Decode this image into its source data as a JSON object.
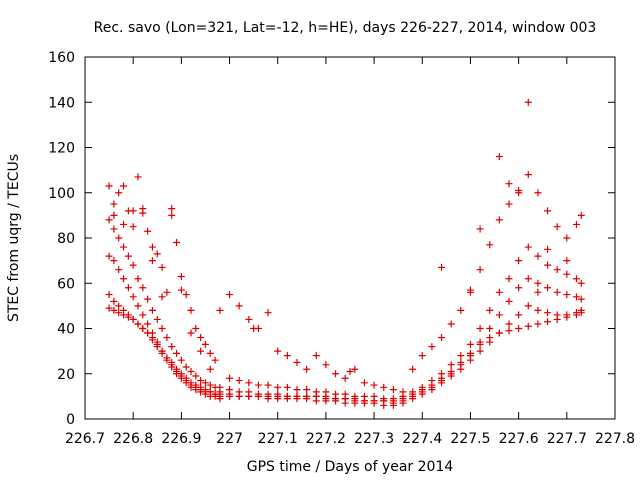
{
  "chart_data": {
    "type": "scatter",
    "title": "Rec. savo (Lon=321, Lat=-12, h=HE), days 226-227, 2014, window 003",
    "xlabel": "GPS time / Days of year 2014",
    "ylabel": "STEC from uqrg / TECUs",
    "xlim": [
      226.7,
      227.8
    ],
    "ylim": [
      0,
      160
    ],
    "xticks": [
      226.7,
      226.8,
      226.9,
      227.0,
      227.1,
      227.2,
      227.3,
      227.4,
      227.5,
      227.6,
      227.7,
      227.8
    ],
    "xtick_labels": [
      "226.7",
      "226.8",
      "226.9",
      "227",
      "227.1",
      "227.2",
      "227.3",
      "227.4",
      "227.5",
      "227.6",
      "227.7",
      "227.8"
    ],
    "yticks": [
      0,
      20,
      40,
      60,
      80,
      100,
      120,
      140,
      160
    ],
    "ytick_labels": [
      "0",
      "20",
      "40",
      "60",
      "80",
      "100",
      "120",
      "140",
      "160"
    ],
    "grid": false,
    "marker": "+",
    "marker_color": "#dd0000",
    "series": [
      {
        "x": [
          226.75,
          226.76,
          226.77,
          226.78,
          226.79,
          226.8,
          226.81,
          226.82,
          226.83,
          226.84,
          226.85,
          226.86,
          226.87,
          226.88,
          226.89,
          226.9,
          226.91,
          226.92,
          226.93,
          226.94,
          226.95,
          226.96,
          226.97,
          226.98,
          227.0,
          227.02,
          227.04,
          227.06,
          227.08,
          227.1,
          227.12,
          227.14,
          227.16,
          227.18,
          227.2,
          227.22,
          227.24,
          227.26,
          227.28,
          227.3,
          227.32,
          227.34,
          227.36,
          227.38,
          227.4,
          227.42,
          227.44,
          227.46,
          227.48,
          227.5,
          227.52,
          227.54,
          227.56,
          227.58,
          227.6,
          227.62,
          227.64,
          227.66,
          227.68,
          227.7,
          227.72,
          227.73
        ],
        "y": [
          103,
          95,
          100,
          103,
          92,
          85,
          107,
          93,
          83,
          76,
          73,
          67,
          56,
          93,
          78,
          63,
          55,
          48,
          40,
          36,
          33,
          29,
          26,
          48,
          55,
          50,
          44,
          40,
          47,
          30,
          28,
          25,
          22,
          28,
          24,
          20,
          18,
          22,
          16,
          15,
          14,
          13,
          12,
          22,
          28,
          32,
          36,
          42,
          48,
          56,
          66,
          77,
          88,
          95,
          100,
          108,
          100,
          92,
          85,
          80,
          86,
          90
        ]
      },
      {
        "x": [
          226.75,
          226.76,
          226.77,
          226.78,
          226.79,
          226.8,
          226.81,
          226.82,
          226.83,
          226.84,
          226.85,
          226.86,
          226.87,
          226.88,
          226.89,
          226.9,
          226.91,
          226.92,
          226.93,
          226.94,
          226.95,
          226.96,
          226.97,
          226.98,
          227.0,
          227.02,
          227.04,
          227.06,
          227.08,
          227.1,
          227.12,
          227.14,
          227.16,
          227.18,
          227.2,
          227.22,
          227.24,
          227.26,
          227.28,
          227.3,
          227.32,
          227.34,
          227.36,
          227.38,
          227.4,
          227.42,
          227.44,
          227.46,
          227.48,
          227.5,
          227.52,
          227.54,
          227.56,
          227.58,
          227.6,
          227.62,
          227.64,
          227.66,
          227.68,
          227.7,
          227.72,
          227.73
        ],
        "y": [
          88,
          84,
          80,
          76,
          72,
          68,
          62,
          58,
          53,
          48,
          44,
          40,
          36,
          32,
          29,
          26,
          23,
          21,
          19,
          17,
          16,
          15,
          14,
          14,
          18,
          17,
          16,
          15,
          15,
          14,
          14,
          13,
          13,
          12,
          12,
          11,
          11,
          10,
          10,
          10,
          9,
          9,
          10,
          12,
          14,
          17,
          20,
          24,
          28,
          33,
          40,
          48,
          56,
          62,
          70,
          76,
          72,
          68,
          66,
          64,
          62,
          60
        ]
      },
      {
        "x": [
          226.75,
          226.76,
          226.77,
          226.78,
          226.79,
          226.8,
          226.81,
          226.82,
          226.83,
          226.84,
          226.85,
          226.86,
          226.87,
          226.88,
          226.89,
          226.9,
          226.91,
          226.92,
          226.93,
          226.94,
          226.95,
          226.96,
          226.97,
          226.98,
          227.0,
          227.02,
          227.04,
          227.06,
          227.08,
          227.1,
          227.12,
          227.14,
          227.16,
          227.18,
          227.2,
          227.22,
          227.24,
          227.26,
          227.28,
          227.3,
          227.32,
          227.34,
          227.36,
          227.38,
          227.4,
          227.42,
          227.44,
          227.46,
          227.48,
          227.5,
          227.52,
          227.54,
          227.56,
          227.58,
          227.6,
          227.62,
          227.64,
          227.66,
          227.68,
          227.7,
          227.72,
          227.73
        ],
        "y": [
          72,
          70,
          66,
          62,
          58,
          54,
          50,
          46,
          42,
          38,
          34,
          30,
          27,
          24,
          21,
          19,
          17,
          15,
          14,
          13,
          12,
          12,
          11,
          11,
          13,
          12,
          12,
          11,
          11,
          11,
          10,
          10,
          10,
          10,
          9,
          9,
          9,
          8,
          8,
          8,
          8,
          7,
          8,
          10,
          12,
          14,
          17,
          20,
          24,
          28,
          34,
          40,
          46,
          52,
          58,
          62,
          60,
          58,
          56,
          55,
          54,
          53
        ]
      },
      {
        "x": [
          226.75,
          226.76,
          226.77,
          226.78,
          226.79,
          226.8,
          226.81,
          226.82,
          226.83,
          226.84,
          226.85,
          226.86,
          226.87,
          226.88,
          226.89,
          226.9,
          226.91,
          226.92,
          226.93,
          226.94,
          226.95,
          226.96,
          226.97,
          226.98,
          227.0,
          227.02,
          227.04,
          227.06,
          227.08,
          227.1,
          227.12,
          227.14,
          227.16,
          227.18,
          227.2,
          227.22,
          227.24,
          227.26,
          227.28,
          227.3,
          227.32,
          227.34,
          227.36,
          227.38,
          227.4,
          227.42,
          227.44,
          227.46,
          227.48,
          227.5,
          227.52,
          227.54,
          227.56,
          227.58,
          227.6,
          227.62,
          227.64,
          227.66,
          227.68,
          227.7,
          227.72,
          227.73
        ],
        "y": [
          55,
          52,
          50,
          48,
          46,
          44,
          42,
          40,
          38,
          35,
          32,
          29,
          26,
          23,
          20,
          18,
          16,
          14,
          13,
          12,
          11,
          10,
          10,
          9,
          11,
          10,
          10,
          10,
          9,
          9,
          9,
          9,
          9,
          8,
          8,
          8,
          7,
          7,
          7,
          7,
          6,
          6,
          7,
          9,
          11,
          13,
          16,
          19,
          22,
          26,
          30,
          34,
          38,
          42,
          46,
          50,
          48,
          47,
          46,
          46,
          47,
          48
        ]
      },
      {
        "x": [
          226.75,
          226.76,
          226.77,
          226.78,
          226.79,
          226.8,
          226.81,
          226.82,
          226.83,
          226.84,
          226.85,
          226.86,
          226.87,
          226.88,
          226.89,
          226.9,
          226.91,
          226.92,
          226.93,
          226.94,
          226.95,
          226.96,
          226.97,
          226.98,
          227.0,
          227.02,
          227.04,
          227.06,
          227.08,
          227.1,
          227.12,
          227.14,
          227.16,
          227.18,
          227.2,
          227.22,
          227.24,
          227.26,
          227.28,
          227.3,
          227.32,
          227.34,
          227.36,
          227.38,
          227.4,
          227.42,
          227.44,
          227.46,
          227.48,
          227.5,
          227.52,
          227.54,
          227.56,
          227.58,
          227.6,
          227.62,
          227.64,
          227.66,
          227.68,
          227.7,
          227.72,
          227.73
        ],
        "y": [
          49,
          48,
          47,
          46,
          45,
          44,
          42,
          40,
          38,
          36,
          33,
          30,
          27,
          25,
          22,
          20,
          18,
          16,
          15,
          14,
          13,
          12,
          11,
          10,
          10,
          10,
          10,
          10,
          10,
          10,
          10,
          10,
          10,
          10,
          10,
          9,
          9,
          9,
          8,
          8,
          8,
          8,
          9,
          11,
          13,
          15,
          18,
          21,
          25,
          29,
          33,
          36,
          38,
          39,
          40,
          41,
          42,
          43,
          44,
          45,
          46,
          47
        ]
      },
      {
        "x": [
          226.76,
          226.78,
          226.8,
          226.82,
          226.84,
          226.86,
          226.88,
          226.9,
          226.92,
          226.94,
          226.96,
          226.98,
          227.05,
          227.25,
          227.44,
          227.5,
          227.52,
          227.56,
          227.58,
          227.6,
          227.62,
          227.64,
          227.66,
          227.7
        ],
        "y": [
          90,
          86,
          92,
          91,
          70,
          54,
          90,
          57,
          38,
          30,
          22,
          12,
          40,
          21,
          67,
          57,
          84,
          116,
          104,
          101,
          140,
          56,
          75,
          70
        ]
      }
    ]
  }
}
